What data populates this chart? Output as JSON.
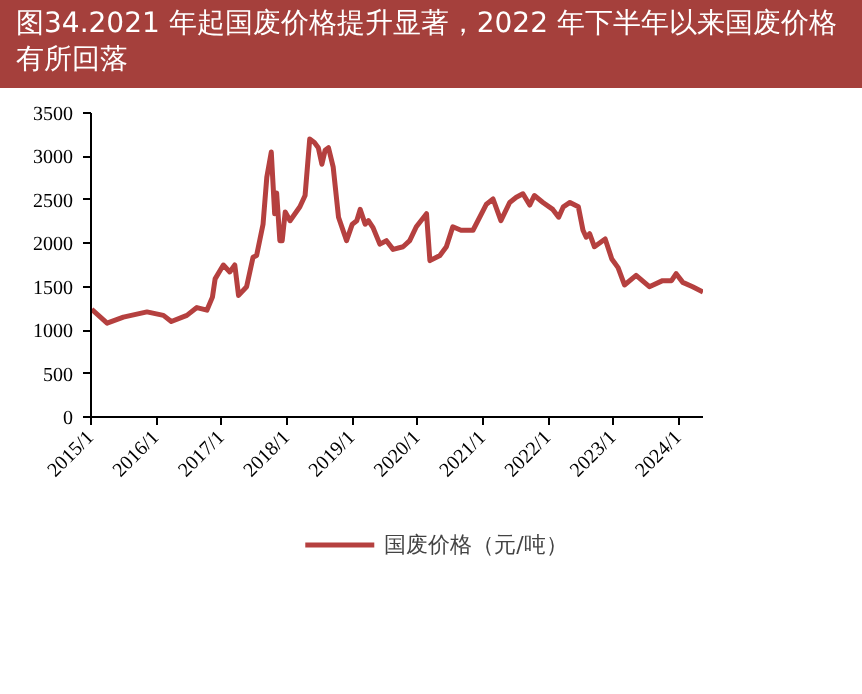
{
  "chart_data": {
    "type": "line",
    "title": "图34.2021 年起国废价格提升显著，2022 年下半年以来国废价格有所回落",
    "x": [
      "2015-01-05",
      "2015-04-01",
      "2015-07-01",
      "2015-11-10",
      "2016-02-10",
      "2016-03-25",
      "2016-06-20",
      "2016-08-15",
      "2016-10-10",
      "2016-11-10",
      "2016-11-25",
      "2017-01-10",
      "2017-02-15",
      "2017-03-15",
      "2017-04-05",
      "2017-05-20",
      "2017-06-25",
      "2017-07-15",
      "2017-08-20",
      "2017-09-10",
      "2017-10-05",
      "2017-10-24",
      "2017-11-04",
      "2017-11-22",
      "2017-12-05",
      "2017-12-22",
      "2018-01-18",
      "2018-03-14",
      "2018-04-12",
      "2018-05-08",
      "2018-06-03",
      "2018-06-25",
      "2018-07-15",
      "2018-08-02",
      "2018-08-21",
      "2018-09-16",
      "2018-10-16",
      "2018-11-30",
      "2019-01-01",
      "2019-01-26",
      "2019-02-14",
      "2019-03-14",
      "2019-04-01",
      "2019-04-27",
      "2019-06-04",
      "2019-07-11",
      "2019-08-17",
      "2019-10-12",
      "2019-11-18",
      "2019-12-25",
      "2020-02-20",
      "2020-03-10",
      "2020-05-05",
      "2020-06-10",
      "2020-07-16",
      "2020-08-31",
      "2020-11-06",
      "2021-01-20",
      "2021-02-26",
      "2021-04-11",
      "2021-05-30",
      "2021-07-06",
      "2021-08-12",
      "2021-09-19",
      "2021-10-15",
      "2021-12-02",
      "2022-01-26",
      "2022-02-28",
      "2022-03-26",
      "2022-05-02",
      "2022-06-18",
      "2022-07-14",
      "2022-08-01",
      "2022-08-20",
      "2022-09-16",
      "2022-11-15",
      "2022-12-22",
      "2023-01-26",
      "2023-03-03",
      "2023-05-07",
      "2023-07-20",
      "2023-10-02",
      "2023-11-21",
      "2023-12-17",
      "2024-01-23",
      "2024-03-18",
      "2024-05-15"
    ],
    "series": [
      {
        "name": "国废价格（元/吨）",
        "color": "#b5403f",
        "values": [
          1240,
          1080,
          1150,
          1210,
          1170,
          1100,
          1170,
          1260,
          1230,
          1380,
          1590,
          1750,
          1670,
          1750,
          1400,
          1500,
          1840,
          1860,
          2220,
          2760,
          3050,
          2340,
          2580,
          2030,
          2030,
          2360,
          2260,
          2420,
          2550,
          3200,
          3160,
          3100,
          2910,
          3070,
          3100,
          2880,
          2300,
          2030,
          2220,
          2260,
          2390,
          2220,
          2260,
          2180,
          1990,
          2030,
          1930,
          1960,
          2030,
          2190,
          2340,
          1800,
          1860,
          1960,
          2190,
          2150,
          2150,
          2450,
          2510,
          2260,
          2470,
          2530,
          2570,
          2440,
          2550,
          2470,
          2390,
          2300,
          2420,
          2470,
          2420,
          2150,
          2070,
          2110,
          1960,
          2050,
          1820,
          1720,
          1520,
          1630,
          1500,
          1570,
          1570,
          1650,
          1550,
          1500,
          1440
        ]
      }
    ],
    "xlim": [
      "2015-01-01",
      "2024-05-15"
    ],
    "xticks": [
      {
        "value": "2015-01-01",
        "label": "2015/1"
      },
      {
        "value": "2016-01-01",
        "label": "2016/1"
      },
      {
        "value": "2017-01-01",
        "label": "2017/1"
      },
      {
        "value": "2018-01-01",
        "label": "2018/1"
      },
      {
        "value": "2019-01-01",
        "label": "2019/1"
      },
      {
        "value": "2020-01-01",
        "label": "2020/1"
      },
      {
        "value": "2021-01-01",
        "label": "2021/1"
      },
      {
        "value": "2022-01-01",
        "label": "2022/1"
      },
      {
        "value": "2023-01-01",
        "label": "2023/1"
      },
      {
        "value": "2024-01-01",
        "label": "2024/1"
      }
    ],
    "ylim": [
      0,
      3500
    ],
    "yticks": [
      0,
      500,
      1000,
      1500,
      2000,
      2500,
      3000,
      3500
    ],
    "grid": false,
    "legend": "bottom"
  }
}
